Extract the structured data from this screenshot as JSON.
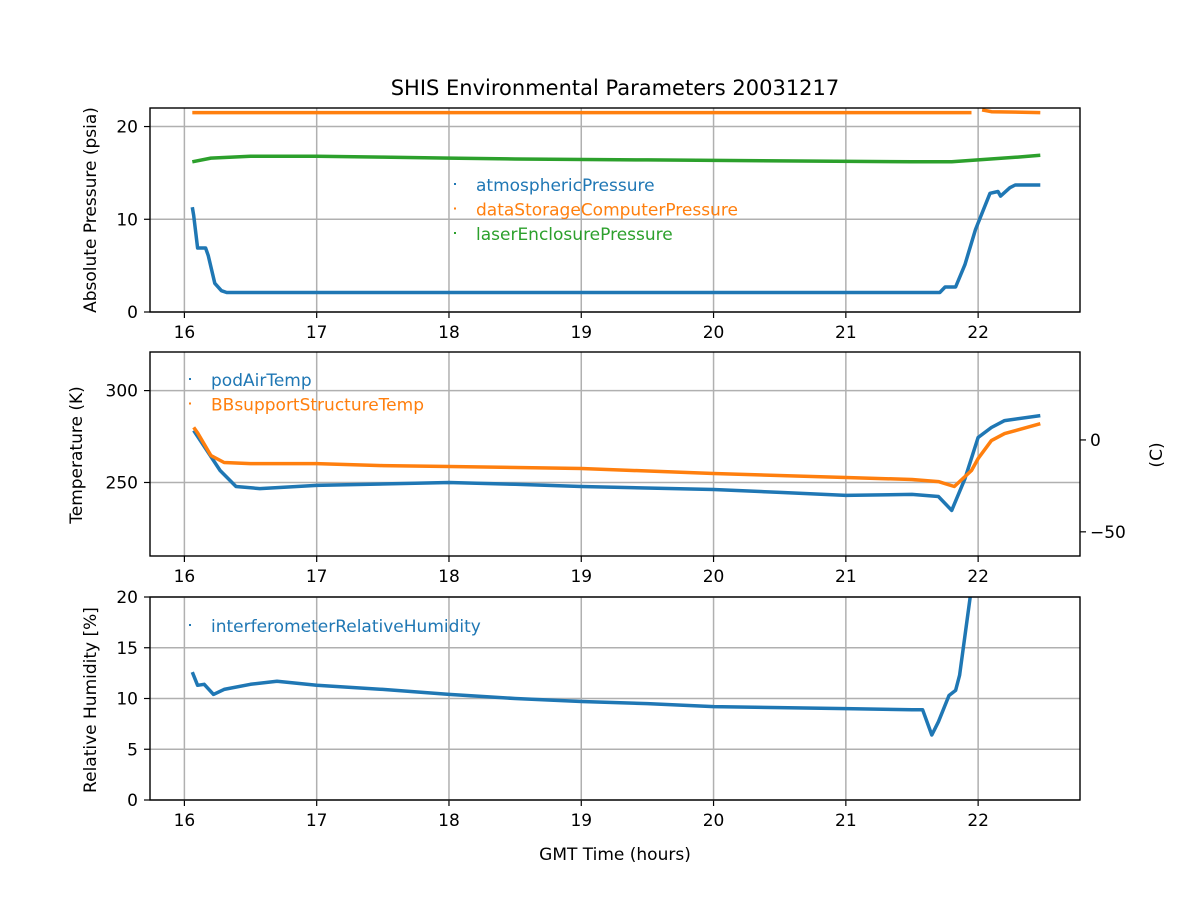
{
  "chart_data": [
    {
      "type": "scatter",
      "title": "SHIS Environmental Parameters 20031217",
      "xlabel": "",
      "ylabel": "Absolute Pressure (psia)",
      "xlim": [
        15.74,
        22.77
      ],
      "ylim": [
        0,
        22
      ],
      "xticks": [
        16,
        17,
        18,
        19,
        20,
        21,
        22
      ],
      "yticks": [
        0,
        10,
        20
      ],
      "grid": true,
      "legend": "center",
      "series": [
        {
          "name": "atmosphericPressure",
          "color": "#1f77b4",
          "points": [
            [
              16.06,
              11.3
            ],
            [
              16.07,
              10.4
            ],
            [
              16.1,
              6.9
            ],
            [
              16.16,
              6.9
            ],
            [
              16.18,
              6.1
            ],
            [
              16.23,
              3.1
            ],
            [
              16.28,
              2.3
            ],
            [
              16.32,
              2.1
            ],
            [
              17,
              2.1
            ],
            [
              18,
              2.1
            ],
            [
              19,
              2.1
            ],
            [
              20,
              2.1
            ],
            [
              21,
              2.1
            ],
            [
              21.71,
              2.1
            ],
            [
              21.75,
              2.7
            ],
            [
              21.83,
              2.7
            ],
            [
              21.9,
              5.1
            ],
            [
              21.98,
              8.9
            ],
            [
              22.0,
              9.6
            ],
            [
              22.09,
              12.8
            ],
            [
              22.15,
              13.0
            ],
            [
              22.17,
              12.5
            ],
            [
              22.24,
              13.4
            ],
            [
              22.28,
              13.7
            ],
            [
              22.47,
              13.7
            ]
          ]
        },
        {
          "name": "dataStorageComputerPressure",
          "color": "#ff7f0e",
          "points": [
            [
              16.06,
              21.5
            ],
            [
              17,
              21.5
            ],
            [
              18,
              21.5
            ],
            [
              19,
              21.5
            ],
            [
              20,
              21.5
            ],
            [
              21,
              21.5
            ],
            [
              21.95,
              21.5
            ],
            null,
            [
              22.03,
              21.8
            ],
            [
              22.1,
              21.6
            ],
            [
              22.47,
              21.5
            ]
          ]
        },
        {
          "name": "laserEnclosurePressure",
          "color": "#2ca02c",
          "points": [
            [
              16.06,
              16.2
            ],
            [
              16.2,
              16.6
            ],
            [
              16.5,
              16.8
            ],
            [
              17,
              16.8
            ],
            [
              17.5,
              16.7
            ],
            [
              18,
              16.6
            ],
            [
              18.5,
              16.5
            ],
            [
              19.5,
              16.4
            ],
            [
              20.5,
              16.3
            ],
            [
              21.5,
              16.2
            ],
            [
              21.8,
              16.2
            ],
            [
              22.0,
              16.4
            ],
            [
              22.3,
              16.7
            ],
            [
              22.47,
              16.9
            ]
          ]
        }
      ]
    },
    {
      "type": "scatter",
      "ylabel": "Temperature (K)",
      "y2label": "(C)",
      "xlim": [
        15.74,
        22.77
      ],
      "ylim": [
        210,
        321
      ],
      "xticks": [
        16,
        17,
        18,
        19,
        20,
        21,
        22
      ],
      "yticks": [
        250,
        300
      ],
      "y2ticks": [
        -50,
        0
      ],
      "grid": true,
      "legend": "upper-left",
      "series": [
        {
          "name": "podAirTemp",
          "color": "#1f77b4",
          "points": [
            [
              16.07,
              278.3
            ],
            [
              16.16,
              268.5
            ],
            [
              16.27,
              256.5
            ],
            [
              16.39,
              247.8
            ],
            [
              16.57,
              246.7
            ],
            [
              17,
              248.4
            ],
            [
              18,
              250
            ],
            [
              18.5,
              249
            ],
            [
              19,
              247.8
            ],
            [
              20,
              246.2
            ],
            [
              20.5,
              244.6
            ],
            [
              21,
              243
            ],
            [
              21.5,
              243.5
            ],
            [
              21.7,
              242.4
            ],
            [
              21.8,
              234.8
            ],
            [
              21.9,
              252
            ],
            [
              22.0,
              274.5
            ],
            [
              22.1,
              279.9
            ],
            [
              22.2,
              283.7
            ],
            [
              22.47,
              286.4
            ]
          ]
        },
        {
          "name": "BBsupportStructureTemp",
          "color": "#ff7f0e",
          "points": [
            [
              16.07,
              280
            ],
            [
              16.1,
              277
            ],
            [
              16.2,
              264.7
            ],
            [
              16.3,
              260.9
            ],
            [
              16.5,
              260.3
            ],
            [
              17,
              260.3
            ],
            [
              17.5,
              259.2
            ],
            [
              18,
              258.7
            ],
            [
              19,
              257.6
            ],
            [
              20,
              254.9
            ],
            [
              21,
              252.7
            ],
            [
              21.5,
              251.6
            ],
            [
              21.7,
              250.5
            ],
            [
              21.82,
              247.8
            ],
            [
              21.95,
              256.5
            ],
            [
              22.0,
              263
            ],
            [
              22.1,
              272.8
            ],
            [
              22.2,
              276.6
            ],
            [
              22.47,
              282
            ]
          ]
        }
      ]
    },
    {
      "type": "scatter",
      "xlabel": "GMT Time (hours)",
      "ylabel": "Relative Humidity [%]",
      "xlim": [
        15.74,
        22.77
      ],
      "ylim": [
        0,
        20
      ],
      "xticks": [
        16,
        17,
        18,
        19,
        20,
        21,
        22
      ],
      "yticks": [
        0,
        5,
        10,
        15,
        20
      ],
      "grid": true,
      "legend": "upper-left",
      "series": [
        {
          "name": "interferometerRelativeHumidity",
          "color": "#1f77b4",
          "points": [
            [
              16.06,
              12.6
            ],
            [
              16.1,
              11.3
            ],
            [
              16.15,
              11.4
            ],
            [
              16.22,
              10.4
            ],
            [
              16.3,
              10.9
            ],
            [
              16.5,
              11.4
            ],
            [
              16.7,
              11.7
            ],
            [
              17,
              11.3
            ],
            [
              17.5,
              10.9
            ],
            [
              18,
              10.4
            ],
            [
              18.5,
              10.0
            ],
            [
              19,
              9.7
            ],
            [
              19.5,
              9.5
            ],
            [
              20,
              9.2
            ],
            [
              20.5,
              9.1
            ],
            [
              21,
              9.0
            ],
            [
              21.5,
              8.9
            ],
            [
              21.58,
              8.9
            ],
            [
              21.65,
              6.4
            ],
            [
              21.7,
              7.7
            ],
            [
              21.78,
              10.3
            ],
            [
              21.83,
              10.8
            ],
            [
              21.86,
              12.3
            ],
            [
              21.94,
              20
            ]
          ]
        }
      ]
    }
  ]
}
